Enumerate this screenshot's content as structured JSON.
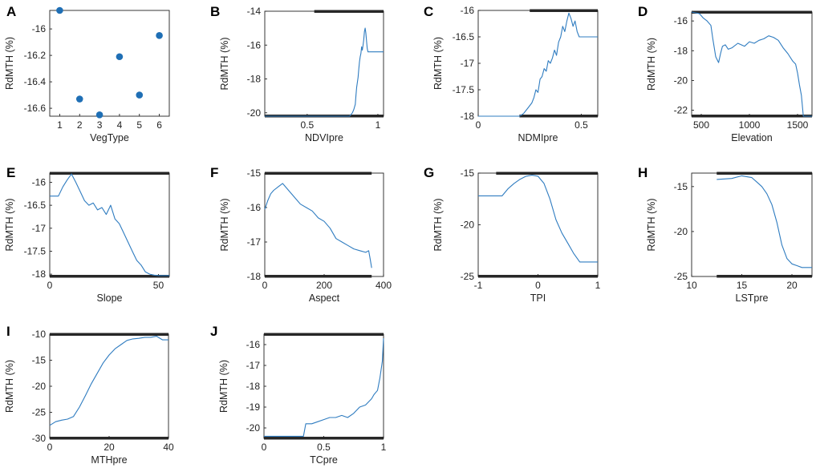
{
  "chart_data": [
    {
      "panel": "A",
      "type": "scatter",
      "xlabel": "VegType",
      "ylabel": "RdMTH (%)",
      "xlim": [
        0.5,
        6.5
      ],
      "ylim": [
        -16.66,
        -15.86
      ],
      "xticks": [
        1,
        2,
        3,
        4,
        5,
        6
      ],
      "xtick_labels": [
        "1",
        "2",
        "3",
        "4",
        "5",
        "6"
      ],
      "yticks": [
        -16.6,
        -16.4,
        -16.2,
        -16
      ],
      "ytick_labels": [
        "-16.6",
        "-16.4",
        "-16.2",
        "-16"
      ],
      "x": [
        1,
        2,
        3,
        4,
        5,
        6
      ],
      "y": [
        -15.86,
        -16.53,
        -16.65,
        -16.21,
        -16.5,
        -16.05
      ]
    },
    {
      "panel": "B",
      "type": "line",
      "xlabel": "NDVIpre",
      "ylabel": "RdMTH (%)",
      "xlim": [
        0.2,
        1.04
      ],
      "ylim": [
        -20.2,
        -14
      ],
      "xticks": [
        0.5,
        1
      ],
      "xtick_labels": [
        "0.5",
        "1"
      ],
      "yticks": [
        -20,
        -18,
        -16,
        -14
      ],
      "ytick_labels": [
        "-20",
        "-18",
        "-16",
        "-14"
      ],
      "x": [
        0.2,
        0.8,
        0.82,
        0.83,
        0.84,
        0.845,
        0.85,
        0.86,
        0.865,
        0.87,
        0.875,
        0.88,
        0.885,
        0.89,
        0.895,
        0.9,
        0.905,
        0.91,
        0.915,
        0.92,
        0.925,
        0.93,
        0.94,
        1.04
      ],
      "y": [
        -20.2,
        -20.2,
        -20.0,
        -19.8,
        -19.5,
        -19.0,
        -18.5,
        -17.9,
        -17.4,
        -17.0,
        -16.7,
        -16.5,
        -16.1,
        -16.3,
        -16.0,
        -15.7,
        -15.2,
        -15.0,
        -15.3,
        -15.8,
        -16.2,
        -16.4,
        -16.4,
        -16.4
      ],
      "rug": {
        "top": [
          0.55,
          1.04
        ],
        "bottom": [
          0.2,
          1.04
        ]
      }
    },
    {
      "panel": "C",
      "type": "line",
      "xlabel": "NDMIpre",
      "ylabel": "RdMTH (%)",
      "xlim": [
        0,
        0.58
      ],
      "ylim": [
        -18,
        -16
      ],
      "xticks": [
        0,
        0.5
      ],
      "xtick_labels": [
        "0",
        "0.5"
      ],
      "yticks": [
        -18,
        -17.5,
        -17,
        -16.5,
        -16
      ],
      "ytick_labels": [
        "-18",
        "-17.5",
        "-17",
        "-16.5",
        "-16"
      ],
      "x": [
        0,
        0.2,
        0.22,
        0.24,
        0.26,
        0.27,
        0.28,
        0.29,
        0.3,
        0.31,
        0.32,
        0.33,
        0.34,
        0.35,
        0.36,
        0.37,
        0.38,
        0.39,
        0.4,
        0.41,
        0.42,
        0.43,
        0.44,
        0.45,
        0.46,
        0.47,
        0.48,
        0.49,
        0.5,
        0.58
      ],
      "y": [
        -18,
        -18,
        -17.95,
        -17.85,
        -17.75,
        -17.65,
        -17.5,
        -17.55,
        -17.3,
        -17.25,
        -17.1,
        -17.15,
        -16.95,
        -17.0,
        -16.9,
        -16.75,
        -16.85,
        -16.6,
        -16.5,
        -16.3,
        -16.4,
        -16.2,
        -16.05,
        -16.15,
        -16.3,
        -16.2,
        -16.4,
        -16.5,
        -16.5,
        -16.5
      ],
      "rug": {
        "top": [
          0.25,
          0.58
        ],
        "bottom": [
          0.2,
          0.58
        ]
      }
    },
    {
      "panel": "D",
      "type": "line",
      "xlabel": "Elevation",
      "ylabel": "RdMTH (%)",
      "xlim": [
        400,
        1650
      ],
      "ylim": [
        -22.4,
        -15.4
      ],
      "xticks": [
        500,
        1000,
        1500
      ],
      "xtick_labels": [
        "500",
        "1000",
        "1500"
      ],
      "yticks": [
        -22,
        -20,
        -18,
        -16
      ],
      "ytick_labels": [
        "-22",
        "-20",
        "-18",
        "-16"
      ],
      "x": [
        400,
        480,
        520,
        560,
        600,
        620,
        650,
        680,
        700,
        720,
        750,
        780,
        820,
        880,
        950,
        1000,
        1050,
        1100,
        1150,
        1200,
        1250,
        1300,
        1350,
        1400,
        1450,
        1480,
        1500,
        1520,
        1540,
        1560,
        1580,
        1650
      ],
      "y": [
        -15.4,
        -15.5,
        -15.8,
        -16.0,
        -16.3,
        -17.2,
        -18.4,
        -18.8,
        -18.2,
        -17.7,
        -17.6,
        -17.9,
        -17.8,
        -17.5,
        -17.7,
        -17.4,
        -17.5,
        -17.3,
        -17.2,
        -17.0,
        -17.1,
        -17.3,
        -17.8,
        -18.2,
        -18.7,
        -18.9,
        -19.5,
        -20.3,
        -21.0,
        -22.4,
        -22.4,
        -22.4
      ],
      "rug": {
        "top": [
          400,
          1650
        ],
        "bottom": [
          400,
          1650
        ]
      }
    },
    {
      "panel": "E",
      "type": "line",
      "xlabel": "Slope",
      "ylabel": "RdMTH (%)",
      "xlim": [
        0,
        55
      ],
      "ylim": [
        -18.05,
        -15.8
      ],
      "xticks": [
        0,
        50
      ],
      "xtick_labels": [
        "0",
        "50"
      ],
      "yticks": [
        -18,
        -17.5,
        -17,
        -16.5,
        -16
      ],
      "ytick_labels": [
        "-18",
        "-17.5",
        "-17",
        "-16.5",
        "-16"
      ],
      "x": [
        0,
        4,
        6,
        8,
        10,
        12,
        14,
        16,
        18,
        20,
        22,
        24,
        26,
        28,
        30,
        32,
        34,
        36,
        38,
        40,
        42,
        44,
        46,
        48,
        50,
        55
      ],
      "y": [
        -16.3,
        -16.3,
        -16.1,
        -15.95,
        -15.82,
        -16.0,
        -16.2,
        -16.4,
        -16.5,
        -16.45,
        -16.6,
        -16.55,
        -16.7,
        -16.5,
        -16.8,
        -16.9,
        -17.1,
        -17.3,
        -17.5,
        -17.7,
        -17.8,
        -17.95,
        -18.0,
        -18.02,
        -18.03,
        -18.03
      ],
      "rug": {
        "top": [
          0,
          55
        ],
        "bottom": [
          0,
          55
        ]
      }
    },
    {
      "panel": "F",
      "type": "line",
      "xlabel": "Aspect",
      "ylabel": "RdMTH (%)",
      "xlim": [
        0,
        400
      ],
      "ylim": [
        -18,
        -15
      ],
      "xticks": [
        0,
        200,
        400
      ],
      "xtick_labels": [
        "0",
        "200",
        "400"
      ],
      "yticks": [
        -18,
        -17,
        -16,
        -15
      ],
      "ytick_labels": [
        "-18",
        "-17",
        "-16",
        "-15"
      ],
      "x": [
        0,
        10,
        20,
        30,
        45,
        60,
        80,
        100,
        120,
        140,
        160,
        180,
        200,
        220,
        240,
        260,
        280,
        300,
        320,
        340,
        350,
        355,
        360
      ],
      "y": [
        -16.05,
        -15.8,
        -15.6,
        -15.5,
        -15.4,
        -15.3,
        -15.5,
        -15.7,
        -15.9,
        -16.0,
        -16.1,
        -16.3,
        -16.4,
        -16.6,
        -16.9,
        -17.0,
        -17.1,
        -17.2,
        -17.25,
        -17.3,
        -17.25,
        -17.5,
        -17.75
      ],
      "rug": {
        "top": [
          0,
          360
        ],
        "bottom": [
          0,
          360
        ]
      }
    },
    {
      "panel": "G",
      "type": "line",
      "xlabel": "TPI",
      "ylabel": "RdMTH (%)",
      "xlim": [
        -1,
        1
      ],
      "ylim": [
        -25,
        -15
      ],
      "xticks": [
        -1,
        0,
        1
      ],
      "xtick_labels": [
        "-1",
        "0",
        "1"
      ],
      "yticks": [
        -25,
        -20,
        -15
      ],
      "ytick_labels": [
        "-25",
        "-20",
        "-15"
      ],
      "x": [
        -1,
        -0.6,
        -0.5,
        -0.4,
        -0.3,
        -0.2,
        -0.1,
        0,
        0.1,
        0.2,
        0.3,
        0.4,
        0.5,
        0.6,
        0.7,
        1
      ],
      "y": [
        -17.2,
        -17.2,
        -16.5,
        -16.0,
        -15.6,
        -15.3,
        -15.2,
        -15.3,
        -16.0,
        -17.5,
        -19.5,
        -20.8,
        -21.8,
        -22.8,
        -23.6,
        -23.6
      ],
      "rug": {
        "top": [
          -0.7,
          1
        ],
        "bottom": [
          -1,
          1
        ]
      }
    },
    {
      "panel": "H",
      "type": "line",
      "xlabel": "LSTpre",
      "ylabel": "RdMTH (%)",
      "xlim": [
        10,
        22
      ],
      "ylim": [
        -25,
        -13.5
      ],
      "xticks": [
        10,
        15,
        20
      ],
      "xtick_labels": [
        "10",
        "15",
        "20"
      ],
      "yticks": [
        -25,
        -20,
        -15
      ],
      "ytick_labels": [
        "-25",
        "-20",
        "-15"
      ],
      "x": [
        12.5,
        14,
        15,
        16,
        16.5,
        17,
        17.5,
        18,
        18.5,
        19,
        19.5,
        20,
        20.5,
        21,
        22
      ],
      "y": [
        -14.2,
        -14.1,
        -13.8,
        -14.0,
        -14.5,
        -15.0,
        -15.8,
        -17.0,
        -19.0,
        -21.5,
        -23.0,
        -23.6,
        -23.8,
        -24.0,
        -24.0
      ],
      "rug": {
        "top": [
          12.5,
          22
        ],
        "bottom": [
          12.5,
          22
        ]
      }
    },
    {
      "panel": "I",
      "type": "line",
      "xlabel": "MTHpre",
      "ylabel": "RdMTH (%)",
      "xlim": [
        0,
        40
      ],
      "ylim": [
        -30,
        -10
      ],
      "xticks": [
        0,
        20,
        40
      ],
      "xtick_labels": [
        "0",
        "20",
        "40"
      ],
      "yticks": [
        -30,
        -25,
        -20,
        -15,
        -10
      ],
      "ytick_labels": [
        "-30",
        "-25",
        "-20",
        "-15",
        "-10"
      ],
      "x": [
        0,
        2,
        4,
        6,
        8,
        10,
        12,
        14,
        16,
        18,
        20,
        22,
        24,
        26,
        28,
        30,
        32,
        34,
        36,
        38,
        40
      ],
      "y": [
        -27.5,
        -26.8,
        -26.5,
        -26.3,
        -25.8,
        -24.0,
        -21.8,
        -19.5,
        -17.5,
        -15.5,
        -14.0,
        -12.8,
        -12.0,
        -11.2,
        -10.9,
        -10.8,
        -10.6,
        -10.6,
        -10.4,
        -11.1,
        -11.1
      ],
      "rug": {
        "top": [
          0,
          40
        ],
        "bottom": [
          0,
          40
        ]
      }
    },
    {
      "panel": "J",
      "type": "line",
      "xlabel": "TCpre",
      "ylabel": "RdMTH (%)",
      "xlim": [
        0,
        1
      ],
      "ylim": [
        -20.5,
        -15.5
      ],
      "xticks": [
        0,
        0.5,
        1
      ],
      "xtick_labels": [
        "0",
        "0.5",
        "1"
      ],
      "yticks": [
        -20,
        -19,
        -18,
        -17,
        -16
      ],
      "ytick_labels": [
        "-20",
        "-19",
        "-18",
        "-17",
        "-16"
      ],
      "x": [
        0,
        0.3,
        0.33,
        0.35,
        0.4,
        0.45,
        0.5,
        0.55,
        0.6,
        0.65,
        0.7,
        0.75,
        0.8,
        0.85,
        0.9,
        0.92,
        0.95,
        0.97,
        0.99,
        1
      ],
      "y": [
        -20.4,
        -20.4,
        -20.4,
        -19.8,
        -19.8,
        -19.7,
        -19.6,
        -19.5,
        -19.5,
        -19.4,
        -19.5,
        -19.3,
        -19.0,
        -18.9,
        -18.6,
        -18.4,
        -18.2,
        -17.6,
        -16.8,
        -15.7
      ],
      "rug": {
        "top": [
          0,
          1
        ],
        "bottom": [
          0,
          1
        ]
      }
    }
  ]
}
